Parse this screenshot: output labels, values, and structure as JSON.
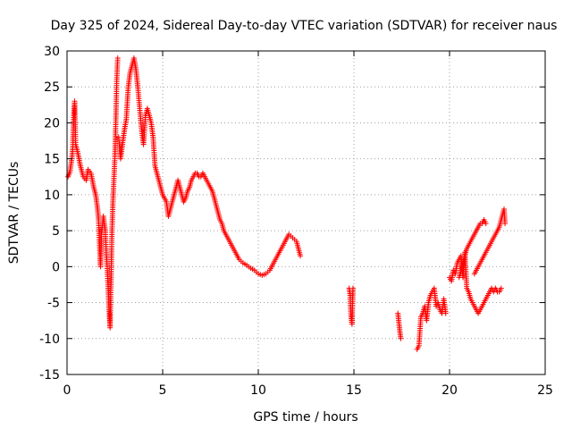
{
  "chart_data": {
    "type": "scatter",
    "title": "Day 325 of 2024, Sidereal Day-to-day VTEC variation (SDTVAR) for receiver naus",
    "xlabel": "GPS time / hours",
    "ylabel": "SDTVAR / TECUs",
    "xlim": [
      0,
      25
    ],
    "ylim": [
      -15,
      30
    ],
    "xticks": [
      "0",
      "5",
      "10",
      "15",
      "20",
      "25"
    ],
    "yticks": [
      "-15",
      "-10",
      "-5",
      "0",
      "5",
      "10",
      "15",
      "20",
      "25",
      "30"
    ],
    "grid": true,
    "legend": "none",
    "marker": "plus",
    "series": [
      {
        "name": "SDTVAR",
        "color": "#ff0000",
        "segments": [
          [
            [
              0.05,
              12.5
            ],
            [
              0.15,
              13.2
            ],
            [
              0.25,
              15
            ],
            [
              0.3,
              16.5
            ],
            [
              0.35,
              21
            ],
            [
              0.4,
              23
            ],
            [
              0.45,
              17
            ],
            [
              0.55,
              16
            ],
            [
              0.7,
              14
            ],
            [
              0.85,
              12.5
            ],
            [
              1.0,
              12
            ],
            [
              1.1,
              13.5
            ],
            [
              1.25,
              13
            ],
            [
              1.4,
              11
            ],
            [
              1.5,
              10
            ],
            [
              1.6,
              8
            ],
            [
              1.65,
              6.5
            ],
            [
              1.7,
              3
            ],
            [
              1.75,
              0
            ],
            [
              1.8,
              4.5
            ],
            [
              1.9,
              7
            ],
            [
              2.0,
              5
            ],
            [
              2.05,
              2
            ],
            [
              2.1,
              0
            ],
            [
              2.15,
              -3
            ],
            [
              2.2,
              -6
            ],
            [
              2.25,
              -8.5
            ],
            [
              2.3,
              -2
            ],
            [
              2.35,
              5
            ],
            [
              2.4,
              9
            ],
            [
              2.45,
              12
            ],
            [
              2.5,
              15
            ],
            [
              2.55,
              20
            ],
            [
              2.6,
              26
            ],
            [
              2.65,
              29
            ]
          ],
          [
            [
              2.7,
              18
            ],
            [
              2.8,
              15
            ],
            [
              2.9,
              17
            ],
            [
              3.0,
              19
            ],
            [
              3.1,
              20.5
            ],
            [
              3.2,
              25
            ],
            [
              3.3,
              27
            ],
            [
              3.4,
              28
            ],
            [
              3.5,
              29
            ],
            [
              3.6,
              27.5
            ],
            [
              3.7,
              25
            ],
            [
              3.8,
              22
            ],
            [
              3.9,
              19
            ],
            [
              4.0,
              17
            ],
            [
              4.1,
              21
            ],
            [
              4.2,
              22
            ],
            [
              4.3,
              21
            ],
            [
              4.4,
              20
            ],
            [
              4.5,
              18
            ],
            [
              4.6,
              14
            ],
            [
              4.7,
              13
            ],
            [
              4.8,
              12
            ],
            [
              4.9,
              11
            ],
            [
              5.0,
              10
            ],
            [
              5.1,
              9.5
            ],
            [
              5.2,
              9
            ],
            [
              5.3,
              7
            ],
            [
              5.4,
              8
            ],
            [
              5.5,
              9
            ],
            [
              5.6,
              10
            ],
            [
              5.7,
              11
            ],
            [
              5.8,
              12
            ],
            [
              5.9,
              11
            ],
            [
              6.0,
              10
            ],
            [
              6.1,
              9
            ],
            [
              6.2,
              9.5
            ],
            [
              6.3,
              10.5
            ],
            [
              6.4,
              11
            ],
            [
              6.5,
              12
            ],
            [
              6.6,
              12.5
            ],
            [
              6.7,
              13
            ],
            [
              6.8,
              13
            ],
            [
              6.9,
              12.5
            ],
            [
              7.0,
              12.5
            ],
            [
              7.1,
              13
            ],
            [
              7.2,
              12.5
            ],
            [
              7.3,
              12
            ],
            [
              7.4,
              11.5
            ],
            [
              7.5,
              11
            ],
            [
              7.6,
              10.5
            ],
            [
              7.7,
              9.5
            ],
            [
              7.8,
              8.5
            ],
            [
              7.9,
              7.5
            ],
            [
              8.0,
              6.5
            ],
            [
              8.1,
              6
            ],
            [
              8.2,
              5
            ],
            [
              8.3,
              4.5
            ],
            [
              8.4,
              4
            ],
            [
              8.5,
              3.5
            ],
            [
              8.6,
              3
            ],
            [
              8.7,
              2.5
            ],
            [
              8.8,
              2
            ],
            [
              8.9,
              1.5
            ],
            [
              9.0,
              1
            ],
            [
              9.2,
              0.5
            ],
            [
              9.4,
              0.2
            ],
            [
              9.6,
              -0.2
            ],
            [
              9.8,
              -0.5
            ],
            [
              10.0,
              -1
            ],
            [
              10.2,
              -1.2
            ],
            [
              10.4,
              -1
            ],
            [
              10.6,
              -0.5
            ],
            [
              10.8,
              0.5
            ],
            [
              11.0,
              1.5
            ],
            [
              11.2,
              2.5
            ],
            [
              11.4,
              3.5
            ],
            [
              11.6,
              4.5
            ],
            [
              11.8,
              4
            ],
            [
              12.0,
              3.5
            ],
            [
              12.2,
              1.5
            ]
          ],
          [
            [
              14.75,
              -3
            ],
            [
              14.8,
              -4
            ],
            [
              14.85,
              -7
            ],
            [
              14.9,
              -8
            ],
            [
              14.95,
              -3
            ]
          ],
          [
            [
              17.3,
              -6.5
            ],
            [
              17.4,
              -9
            ],
            [
              17.45,
              -10
            ]
          ],
          [
            [
              18.3,
              -11.5
            ],
            [
              18.4,
              -11
            ],
            [
              18.5,
              -7
            ],
            [
              18.6,
              -6.5
            ],
            [
              18.7,
              -5.5
            ],
            [
              18.8,
              -7.5
            ],
            [
              18.9,
              -5
            ],
            [
              19.0,
              -4
            ],
            [
              19.1,
              -3.5
            ],
            [
              19.2,
              -3
            ],
            [
              19.3,
              -5.5
            ],
            [
              19.4,
              -5
            ],
            [
              19.5,
              -6
            ],
            [
              19.6,
              -6.5
            ],
            [
              19.7,
              -4.5
            ],
            [
              19.8,
              -6.5
            ]
          ],
          [
            [
              20.0,
              -1.5
            ],
            [
              20.1,
              -2
            ],
            [
              20.2,
              -0.5
            ],
            [
              20.3,
              -1
            ],
            [
              20.4,
              0.5
            ],
            [
              20.5,
              1
            ],
            [
              20.6,
              1.5
            ],
            [
              20.7,
              -1.5
            ],
            [
              20.8,
              2
            ],
            [
              20.9,
              -3
            ],
            [
              21.0,
              -3.5
            ],
            [
              21.1,
              -4.5
            ],
            [
              21.2,
              -5
            ],
            [
              21.3,
              -5.5
            ],
            [
              21.4,
              -6
            ],
            [
              21.5,
              -6.5
            ],
            [
              21.6,
              -6
            ],
            [
              21.7,
              -5.5
            ],
            [
              21.8,
              -5
            ],
            [
              21.9,
              -4.5
            ],
            [
              22.0,
              -4
            ],
            [
              22.1,
              -3.5
            ],
            [
              22.2,
              -3
            ],
            [
              22.3,
              -3.5
            ],
            [
              22.4,
              -3
            ],
            [
              22.5,
              -3.5
            ],
            [
              22.6,
              -3.5
            ],
            [
              22.7,
              -3
            ]
          ],
          [
            [
              20.5,
              -1.5
            ],
            [
              20.6,
              -0.5
            ],
            [
              20.7,
              0.5
            ],
            [
              20.8,
              1.5
            ],
            [
              20.9,
              2.5
            ],
            [
              21.0,
              3
            ],
            [
              21.1,
              3.5
            ],
            [
              21.2,
              4
            ],
            [
              21.3,
              4.5
            ],
            [
              21.4,
              5
            ],
            [
              21.5,
              5.5
            ],
            [
              21.6,
              6
            ],
            [
              21.7,
              6
            ],
            [
              21.8,
              6.5
            ],
            [
              21.9,
              6
            ]
          ],
          [
            [
              21.3,
              -1
            ],
            [
              21.4,
              -0.5
            ],
            [
              21.5,
              0
            ],
            [
              21.6,
              0.5
            ],
            [
              21.7,
              1
            ],
            [
              21.8,
              1.5
            ],
            [
              21.9,
              2
            ],
            [
              22.0,
              2.5
            ],
            [
              22.1,
              3
            ],
            [
              22.2,
              3.5
            ],
            [
              22.3,
              4
            ],
            [
              22.4,
              4.5
            ],
            [
              22.5,
              5
            ],
            [
              22.6,
              5.5
            ],
            [
              22.7,
              6.5
            ],
            [
              22.8,
              7.5
            ],
            [
              22.85,
              8
            ],
            [
              22.9,
              6
            ]
          ]
        ]
      }
    ]
  }
}
